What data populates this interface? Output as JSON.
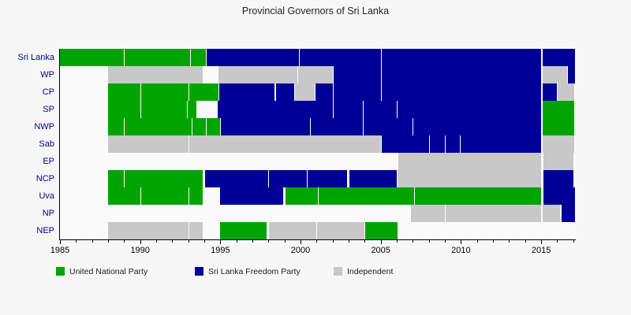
{
  "title": "Provincial Governors of Sri Lanka",
  "colors": {
    "UNP": "#00a400",
    "SLFP": "#000099",
    "IND": "#c8c8c8"
  },
  "legend": {
    "items": [
      {
        "label": "United National Party",
        "party": "UNP"
      },
      {
        "label": "Sri Lanka Freedom Party",
        "party": "SLFP"
      },
      {
        "label": "Independent",
        "party": "IND"
      }
    ]
  },
  "chart_data": {
    "type": "timeline",
    "title": "Provincial Governors of Sri Lanka",
    "xlabel": "",
    "ylabel": "",
    "x_axis": {
      "min": 1985,
      "max": 2017.16,
      "major_ticks": [
        1985,
        1990,
        1995,
        2000,
        2005,
        2010,
        2015
      ],
      "minor_tick_every_years": 1
    },
    "tick_labels": [
      "1985",
      "1990",
      "1995",
      "2000",
      "2005",
      "2010",
      "2015"
    ],
    "legend_entries": [
      "United National Party",
      "Sri Lanka Freedom Party",
      "Independent"
    ],
    "rows": [
      {
        "label": "Sri Lanka",
        "segments": [
          {
            "party": "UNP",
            "start": 1985.0,
            "end": 1989.0
          },
          {
            "party": "UNP",
            "start": 1989.0,
            "end": 1993.1
          },
          {
            "party": "UNP",
            "start": 1993.1,
            "end": 1994.1
          },
          {
            "party": "SLFP",
            "start": 1994.1,
            "end": 1999.9
          },
          {
            "party": "SLFP",
            "start": 1999.9,
            "end": 2005.0
          },
          {
            "party": "SLFP",
            "start": 2005.0,
            "end": 2015.0
          },
          {
            "party": "SLFP",
            "start": 2015.05,
            "end": 2017.1
          }
        ]
      },
      {
        "label": "WP",
        "segments": [
          {
            "party": "IND",
            "start": 1988.0,
            "end": 1993.9
          },
          {
            "party": "IND",
            "start": 1994.9,
            "end": 1999.8
          },
          {
            "party": "IND",
            "start": 1999.8,
            "end": 2002.0
          },
          {
            "party": "SLFP",
            "start": 2002.0,
            "end": 2005.0
          },
          {
            "party": "SLFP",
            "start": 2005.0,
            "end": 2015.0
          },
          {
            "party": "IND",
            "start": 2015.05,
            "end": 2016.6
          },
          {
            "party": "SLFP",
            "start": 2016.6,
            "end": 2017.1
          }
        ]
      },
      {
        "label": "CP",
        "segments": [
          {
            "party": "UNP",
            "start": 1988.0,
            "end": 1990.0
          },
          {
            "party": "UNP",
            "start": 1990.0,
            "end": 1993.0
          },
          {
            "party": "UNP",
            "start": 1993.0,
            "end": 1994.9
          },
          {
            "party": "SLFP",
            "start": 1994.9,
            "end": 1998.4
          },
          {
            "party": "SLFP",
            "start": 1998.4,
            "end": 1999.6
          },
          {
            "party": "IND",
            "start": 1999.6,
            "end": 2000.9
          },
          {
            "party": "SLFP",
            "start": 2000.9,
            "end": 2002.0
          },
          {
            "party": "SLFP",
            "start": 2002.0,
            "end": 2005.0
          },
          {
            "party": "SLFP",
            "start": 2005.0,
            "end": 2015.0
          },
          {
            "party": "SLFP",
            "start": 2015.05,
            "end": 2016.0
          },
          {
            "party": "IND",
            "start": 2016.0,
            "end": 2017.05
          }
        ]
      },
      {
        "label": "SP",
        "segments": [
          {
            "party": "UNP",
            "start": 1988.0,
            "end": 1990.0
          },
          {
            "party": "UNP",
            "start": 1990.0,
            "end": 1992.9
          },
          {
            "party": "UNP",
            "start": 1992.9,
            "end": 1993.5
          },
          {
            "party": "SLFP",
            "start": 1994.85,
            "end": 2002.0
          },
          {
            "party": "SLFP",
            "start": 2002.0,
            "end": 2003.9
          },
          {
            "party": "SLFP",
            "start": 2003.9,
            "end": 2006.0
          },
          {
            "party": "SLFP",
            "start": 2006.0,
            "end": 2015.0
          },
          {
            "party": "UNP",
            "start": 2015.05,
            "end": 2017.05
          }
        ]
      },
      {
        "label": "NWP",
        "segments": [
          {
            "party": "UNP",
            "start": 1988.0,
            "end": 1989.0
          },
          {
            "party": "UNP",
            "start": 1989.0,
            "end": 1993.2
          },
          {
            "party": "UNP",
            "start": 1993.2,
            "end": 1994.1
          },
          {
            "party": "UNP",
            "start": 1994.1,
            "end": 1995.0
          },
          {
            "party": "SLFP",
            "start": 1995.0,
            "end": 2000.6
          },
          {
            "party": "SLFP",
            "start": 2000.6,
            "end": 2003.9
          },
          {
            "party": "SLFP",
            "start": 2003.9,
            "end": 2007.0
          },
          {
            "party": "SLFP",
            "start": 2007.0,
            "end": 2015.0
          },
          {
            "party": "UNP",
            "start": 2015.05,
            "end": 2017.05
          }
        ]
      },
      {
        "label": "Sab",
        "segments": [
          {
            "party": "IND",
            "start": 1988.0,
            "end": 1993.0
          },
          {
            "party": "IND",
            "start": 1993.0,
            "end": 2005.0
          },
          {
            "party": "SLFP",
            "start": 2005.0,
            "end": 2008.0
          },
          {
            "party": "SLFP",
            "start": 2008.0,
            "end": 2009.0
          },
          {
            "party": "SLFP",
            "start": 2009.0,
            "end": 2009.95
          },
          {
            "party": "SLFP",
            "start": 2009.95,
            "end": 2015.0
          },
          {
            "party": "IND",
            "start": 2015.05,
            "end": 2017.05
          }
        ]
      },
      {
        "label": "EP",
        "segments": [
          {
            "party": "IND",
            "start": 2006.1,
            "end": 2015.0
          },
          {
            "party": "IND",
            "start": 2015.1,
            "end": 2017.0
          }
        ]
      },
      {
        "label": "NCP",
        "segments": [
          {
            "party": "UNP",
            "start": 1988.0,
            "end": 1989.0
          },
          {
            "party": "UNP",
            "start": 1989.0,
            "end": 1993.9
          },
          {
            "party": "SLFP",
            "start": 1994.0,
            "end": 1998.0
          },
          {
            "party": "SLFP",
            "start": 1998.0,
            "end": 2000.4
          },
          {
            "party": "SLFP",
            "start": 2000.4,
            "end": 2002.9
          },
          {
            "party": "SLFP",
            "start": 2003.0,
            "end": 2006.0
          },
          {
            "party": "IND",
            "start": 2006.0,
            "end": 2015.0
          },
          {
            "party": "SLFP",
            "start": 2015.1,
            "end": 2017.0
          }
        ]
      },
      {
        "label": "Uva",
        "segments": [
          {
            "party": "UNP",
            "start": 1988.0,
            "end": 1990.0
          },
          {
            "party": "UNP",
            "start": 1990.0,
            "end": 1993.0
          },
          {
            "party": "UNP",
            "start": 1993.0,
            "end": 1993.9
          },
          {
            "party": "SLFP",
            "start": 1995.0,
            "end": 1998.9
          },
          {
            "party": "UNP",
            "start": 1999.0,
            "end": 2001.1
          },
          {
            "party": "UNP",
            "start": 2001.1,
            "end": 2007.1
          },
          {
            "party": "UNP",
            "start": 2007.1,
            "end": 2015.0
          },
          {
            "party": "SLFP",
            "start": 2015.1,
            "end": 2017.1
          }
        ]
      },
      {
        "label": "NP",
        "segments": [
          {
            "party": "IND",
            "start": 2006.9,
            "end": 2009.0
          },
          {
            "party": "IND",
            "start": 2009.0,
            "end": 2015.0
          },
          {
            "party": "IND",
            "start": 2015.05,
            "end": 2016.2
          },
          {
            "party": "SLFP",
            "start": 2016.2,
            "end": 2017.1
          }
        ]
      },
      {
        "label": "NEP",
        "segments": [
          {
            "party": "IND",
            "start": 1988.0,
            "end": 1993.0
          },
          {
            "party": "IND",
            "start": 1993.0,
            "end": 1993.9
          },
          {
            "party": "UNP",
            "start": 1995.0,
            "end": 1997.9
          },
          {
            "party": "IND",
            "start": 1998.0,
            "end": 2001.0
          },
          {
            "party": "IND",
            "start": 2001.0,
            "end": 2004.0
          },
          {
            "party": "UNP",
            "start": 2004.0,
            "end": 2006.05
          }
        ]
      }
    ]
  }
}
